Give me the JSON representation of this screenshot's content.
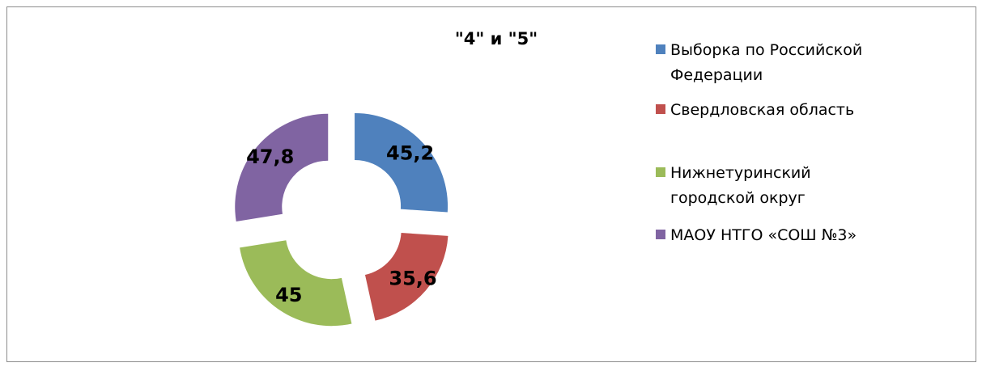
{
  "chart_data": {
    "type": "donut",
    "title": "\"4\" и \"5\"",
    "categories": [
      "Выборка по Российской Федерации",
      "Свердловская область",
      "Нижнетуринский городской округ",
      "МАОУ НТГО «СОШ №3»"
    ],
    "values": [
      45.2,
      35.6,
      45,
      47.8
    ],
    "value_labels": [
      "45,2",
      "35,6",
      "45",
      "47,8"
    ],
    "colors": [
      "#4f81bd",
      "#c0504d",
      "#9bbb59",
      "#8064a2"
    ],
    "legend": "right"
  }
}
